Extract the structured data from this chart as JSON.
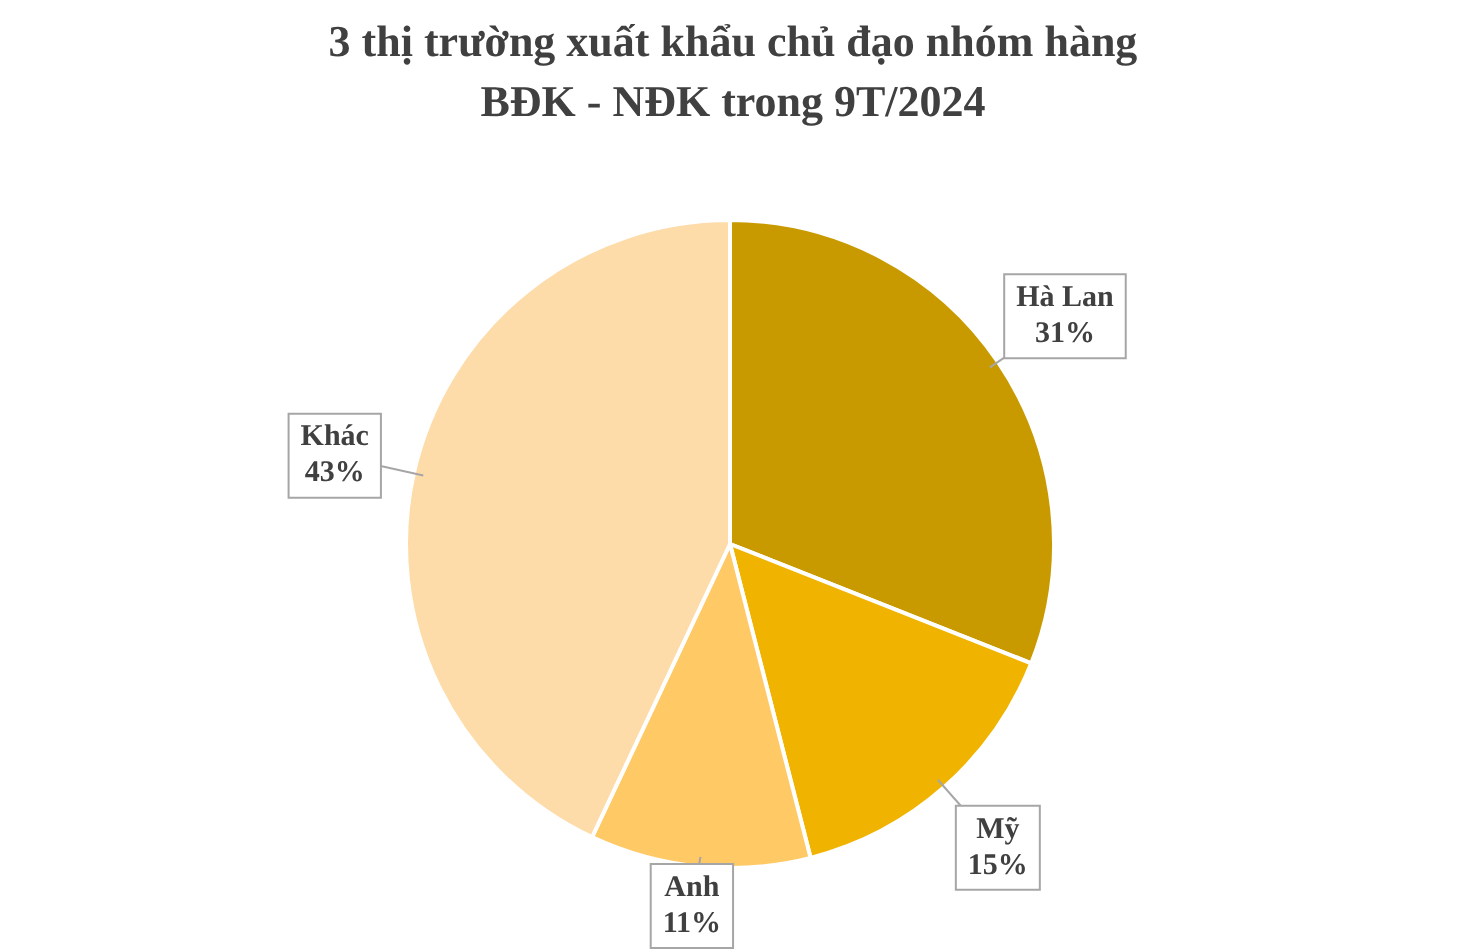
{
  "chart_data": {
    "type": "pie",
    "title": "3 thị trường xuất khẩu chủ đạo nhóm hàng BĐK - NĐK trong 9T/2024",
    "categories": [
      "Hà Lan",
      "Mỹ",
      "Anh",
      "Khác"
    ],
    "values": [
      31,
      15,
      11,
      43
    ],
    "value_labels": [
      "31%",
      "15%",
      "11%",
      "43%"
    ],
    "colors": [
      "#c99a00",
      "#f0b400",
      "#ffc966",
      "#fddcaa"
    ]
  }
}
